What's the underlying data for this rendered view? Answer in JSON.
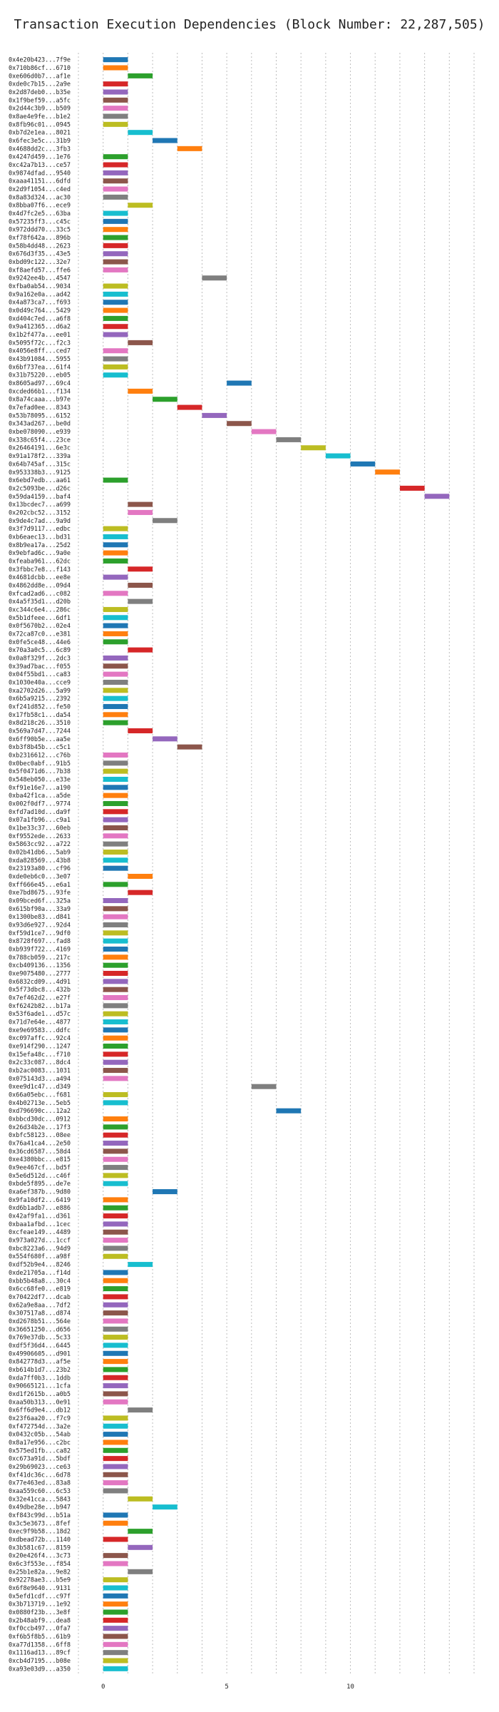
{
  "chart_data": {
    "type": "bar",
    "orientation": "horizontal",
    "title": "Transaction Execution Dependencies (Block Number: 22,287,505)",
    "xlabel": "",
    "ylabel": "",
    "xlim": [
      -1,
      15
    ],
    "xticks": [
      0,
      5,
      10
    ],
    "grid": true,
    "colors": [
      "#1f77b4",
      "#ff7f0e",
      "#2ca02c",
      "#d62728",
      "#9467bd",
      "#8c564b",
      "#e377c2",
      "#7f7f7f",
      "#bcbd22",
      "#17becf"
    ],
    "transactions": [
      {
        "label": "0x4e20b423...7f9e",
        "start": 0,
        "end": 1
      },
      {
        "label": "0x710b86cf...6710",
        "start": 0,
        "end": 1
      },
      {
        "label": "0xe606d0b7...af1e",
        "start": 1,
        "end": 2
      },
      {
        "label": "0xde0c7b15...2a9e",
        "start": 0,
        "end": 1
      },
      {
        "label": "0x2d87deb0...b35e",
        "start": 0,
        "end": 1
      },
      {
        "label": "0x1f9bef59...a5fc",
        "start": 0,
        "end": 1
      },
      {
        "label": "0x2d44c3b9...b509",
        "start": 0,
        "end": 1
      },
      {
        "label": "0x8ae4e9fe...b1e2",
        "start": 0,
        "end": 1
      },
      {
        "label": "0x8fb96c01...0945",
        "start": 0,
        "end": 1
      },
      {
        "label": "0xb7d2e1ea...8021",
        "start": 1,
        "end": 2
      },
      {
        "label": "0x6fec3e5c...31b9",
        "start": 2,
        "end": 3
      },
      {
        "label": "0x4688dd2c...3fb3",
        "start": 3,
        "end": 4
      },
      {
        "label": "0x4247d459...1e76",
        "start": 0,
        "end": 1
      },
      {
        "label": "0xc42a7b13...ce57",
        "start": 0,
        "end": 1
      },
      {
        "label": "0x9874dfad...9540",
        "start": 0,
        "end": 1
      },
      {
        "label": "0xaaa41151...6dfd",
        "start": 0,
        "end": 1
      },
      {
        "label": "0x2d9f1054...c4ed",
        "start": 0,
        "end": 1
      },
      {
        "label": "0x8a83d324...ac30",
        "start": 0,
        "end": 1
      },
      {
        "label": "0x8bba07f6...ece9",
        "start": 1,
        "end": 2
      },
      {
        "label": "0x4d7fc2e5...63ba",
        "start": 0,
        "end": 1
      },
      {
        "label": "0x57235ff3...c45c",
        "start": 0,
        "end": 1
      },
      {
        "label": "0x972ddd70...33c5",
        "start": 0,
        "end": 1
      },
      {
        "label": "0xf78f642a...896b",
        "start": 0,
        "end": 1
      },
      {
        "label": "0x58b4dd48...2623",
        "start": 0,
        "end": 1
      },
      {
        "label": "0x676d3f35...43e5",
        "start": 0,
        "end": 1
      },
      {
        "label": "0xbd09c122...32e7",
        "start": 0,
        "end": 1
      },
      {
        "label": "0xf8aefd57...ffe6",
        "start": 0,
        "end": 1
      },
      {
        "label": "0x9242ee4b...4547",
        "start": 4,
        "end": 5
      },
      {
        "label": "0xfba0ab54...9034",
        "start": 0,
        "end": 1
      },
      {
        "label": "0x9a162e0a...ad42",
        "start": 0,
        "end": 1
      },
      {
        "label": "0x4a873ca7...f693",
        "start": 0,
        "end": 1
      },
      {
        "label": "0x0d49c764...5429",
        "start": 0,
        "end": 1
      },
      {
        "label": "0xd404c7ed...a6f8",
        "start": 0,
        "end": 1
      },
      {
        "label": "0x9a412365...d6a2",
        "start": 0,
        "end": 1
      },
      {
        "label": "0x1b2f477a...ee01",
        "start": 0,
        "end": 1
      },
      {
        "label": "0x5095f72c...f2c3",
        "start": 1,
        "end": 2
      },
      {
        "label": "0x4056e8ff...ced7",
        "start": 0,
        "end": 1
      },
      {
        "label": "0x43b91084...5955",
        "start": 0,
        "end": 1
      },
      {
        "label": "0x6bf737ea...61f4",
        "start": 0,
        "end": 1
      },
      {
        "label": "0x31b75220...eb05",
        "start": 0,
        "end": 1
      },
      {
        "label": "0x8605ad97...69c4",
        "start": 5,
        "end": 6
      },
      {
        "label": "0xcded66b1...f134",
        "start": 1,
        "end": 2
      },
      {
        "label": "0x8a74caaa...b97e",
        "start": 2,
        "end": 3
      },
      {
        "label": "0x7efad0ee...8343",
        "start": 3,
        "end": 4
      },
      {
        "label": "0x53b78095...6152",
        "start": 4,
        "end": 5
      },
      {
        "label": "0x343ad267...be0d",
        "start": 5,
        "end": 6
      },
      {
        "label": "0xbe078090...e939",
        "start": 6,
        "end": 7
      },
      {
        "label": "0x338c65f4...23ce",
        "start": 7,
        "end": 8
      },
      {
        "label": "0x26464191...6e3c",
        "start": 8,
        "end": 9
      },
      {
        "label": "0x91a178f2...339a",
        "start": 9,
        "end": 10
      },
      {
        "label": "0x64b745af...315c",
        "start": 10,
        "end": 11
      },
      {
        "label": "0x953338b3...9125",
        "start": 11,
        "end": 12
      },
      {
        "label": "0x6ebd7edb...aa61",
        "start": 0,
        "end": 1
      },
      {
        "label": "0x2c5093be...d26c",
        "start": 12,
        "end": 13
      },
      {
        "label": "0x59da4159...baf4",
        "start": 13,
        "end": 14
      },
      {
        "label": "0x13bcdec7...a699",
        "start": 1,
        "end": 2
      },
      {
        "label": "0x202cbc52...3152",
        "start": 1,
        "end": 2
      },
      {
        "label": "0x9de4c7ad...9a9d",
        "start": 2,
        "end": 3
      },
      {
        "label": "0x3f7d9117...edbc",
        "start": 0,
        "end": 1
      },
      {
        "label": "0xb6eaec13...bd31",
        "start": 0,
        "end": 1
      },
      {
        "label": "0x8b9ea17a...25d2",
        "start": 0,
        "end": 1
      },
      {
        "label": "0x9ebfad6c...9a0e",
        "start": 0,
        "end": 1
      },
      {
        "label": "0xfeaba961...62dc",
        "start": 0,
        "end": 1
      },
      {
        "label": "0x3fbbc7e8...f143",
        "start": 1,
        "end": 2
      },
      {
        "label": "0x4681dcbb...ee8e",
        "start": 0,
        "end": 1
      },
      {
        "label": "0x4862dd8e...09d4",
        "start": 1,
        "end": 2
      },
      {
        "label": "0xfcad2ad6...c082",
        "start": 0,
        "end": 1
      },
      {
        "label": "0x4a5f35d1...d20b",
        "start": 1,
        "end": 2
      },
      {
        "label": "0xc344c6e4...286c",
        "start": 0,
        "end": 1
      },
      {
        "label": "0x5b1dfeee...6df1",
        "start": 0,
        "end": 1
      },
      {
        "label": "0x0f5670b2...02e4",
        "start": 0,
        "end": 1
      },
      {
        "label": "0x72ca87c0...e381",
        "start": 0,
        "end": 1
      },
      {
        "label": "0x0fe5ce48...44e6",
        "start": 0,
        "end": 1
      },
      {
        "label": "0x70a3a0c5...6c89",
        "start": 1,
        "end": 2
      },
      {
        "label": "0x0a8f329f...2dc3",
        "start": 0,
        "end": 1
      },
      {
        "label": "0x39ad7bac...f055",
        "start": 0,
        "end": 1
      },
      {
        "label": "0x04f55bd1...ca83",
        "start": 0,
        "end": 1
      },
      {
        "label": "0x1030e40a...cce9",
        "start": 0,
        "end": 1
      },
      {
        "label": "0xa2702d26...5a99",
        "start": 0,
        "end": 1
      },
      {
        "label": "0x6b5a9215...2392",
        "start": 0,
        "end": 1
      },
      {
        "label": "0xf241d852...fe50",
        "start": 0,
        "end": 1
      },
      {
        "label": "0x17fb58c1...da54",
        "start": 0,
        "end": 1
      },
      {
        "label": "0x8d218c26...3510",
        "start": 0,
        "end": 1
      },
      {
        "label": "0x569a7d47...7244",
        "start": 1,
        "end": 2
      },
      {
        "label": "0x6ff90b5e...aa5e",
        "start": 2,
        "end": 3
      },
      {
        "label": "0xb3f8b45b...c5c1",
        "start": 3,
        "end": 4
      },
      {
        "label": "0xb2316612...c76b",
        "start": 0,
        "end": 1
      },
      {
        "label": "0x0bec0abf...91b5",
        "start": 0,
        "end": 1
      },
      {
        "label": "0x5f0471d6...7b38",
        "start": 0,
        "end": 1
      },
      {
        "label": "0x548eb050...e33e",
        "start": 0,
        "end": 1
      },
      {
        "label": "0xf91e16e7...a190",
        "start": 0,
        "end": 1
      },
      {
        "label": "0xba42f1ca...a5de",
        "start": 0,
        "end": 1
      },
      {
        "label": "0x002f0df7...9774",
        "start": 0,
        "end": 1
      },
      {
        "label": "0xfd7ad10d...da9f",
        "start": 0,
        "end": 1
      },
      {
        "label": "0x07a1fb96...c9a1",
        "start": 0,
        "end": 1
      },
      {
        "label": "0x1be33c37...60eb",
        "start": 0,
        "end": 1
      },
      {
        "label": "0xf9552ede...2633",
        "start": 0,
        "end": 1
      },
      {
        "label": "0x5863cc92...a722",
        "start": 0,
        "end": 1
      },
      {
        "label": "0x02b41db6...5ab9",
        "start": 0,
        "end": 1
      },
      {
        "label": "0xda828569...43b8",
        "start": 0,
        "end": 1
      },
      {
        "label": "0x23193a80...cf96",
        "start": 0,
        "end": 1
      },
      {
        "label": "0xde0eb6c0...3e07",
        "start": 1,
        "end": 2
      },
      {
        "label": "0xff666e45...e6a1",
        "start": 0,
        "end": 1
      },
      {
        "label": "0xe7bd8675...93fe",
        "start": 1,
        "end": 2
      },
      {
        "label": "0x09bced6f...325a",
        "start": 0,
        "end": 1
      },
      {
        "label": "0x615bf90a...33a9",
        "start": 0,
        "end": 1
      },
      {
        "label": "0x1300be83...d841",
        "start": 0,
        "end": 1
      },
      {
        "label": "0x93d6e927...92d4",
        "start": 0,
        "end": 1
      },
      {
        "label": "0xf59d1ce7...9df0",
        "start": 0,
        "end": 1
      },
      {
        "label": "0x8728f697...fad8",
        "start": 0,
        "end": 1
      },
      {
        "label": "0xb939f722...4169",
        "start": 0,
        "end": 1
      },
      {
        "label": "0x788cb059...217c",
        "start": 0,
        "end": 1
      },
      {
        "label": "0xcb409136...1356",
        "start": 0,
        "end": 1
      },
      {
        "label": "0xe9075480...2777",
        "start": 0,
        "end": 1
      },
      {
        "label": "0x6832cd09...4d91",
        "start": 0,
        "end": 1
      },
      {
        "label": "0x5f73dbc8...432b",
        "start": 0,
        "end": 1
      },
      {
        "label": "0x7ef462d2...e27f",
        "start": 0,
        "end": 1
      },
      {
        "label": "0xf6242b82...b17a",
        "start": 0,
        "end": 1
      },
      {
        "label": "0x53f6ade1...d57c",
        "start": 0,
        "end": 1
      },
      {
        "label": "0x71d7e64e...4877",
        "start": 0,
        "end": 1
      },
      {
        "label": "0xe9e69583...ddfc",
        "start": 0,
        "end": 1
      },
      {
        "label": "0xc097affc...92c4",
        "start": 0,
        "end": 1
      },
      {
        "label": "0xe914f290...1247",
        "start": 0,
        "end": 1
      },
      {
        "label": "0x15efa48c...f710",
        "start": 0,
        "end": 1
      },
      {
        "label": "0x2c33c087...8dc4",
        "start": 0,
        "end": 1
      },
      {
        "label": "0xb2ac0083...1031",
        "start": 0,
        "end": 1
      },
      {
        "label": "0x075143d3...a494",
        "start": 0,
        "end": 1
      },
      {
        "label": "0xee9d1c47...d349",
        "start": 6,
        "end": 7
      },
      {
        "label": "0x66a05ebc...f681",
        "start": 0,
        "end": 1
      },
      {
        "label": "0x4b02713e...5eb5",
        "start": 0,
        "end": 1
      },
      {
        "label": "0xd796690c...12a2",
        "start": 7,
        "end": 8
      },
      {
        "label": "0xbbcd30dc...0912",
        "start": 0,
        "end": 1
      },
      {
        "label": "0x26d34b2e...17f3",
        "start": 0,
        "end": 1
      },
      {
        "label": "0xbfc58123...08ee",
        "start": 0,
        "end": 1
      },
      {
        "label": "0x76a41ca4...2e50",
        "start": 0,
        "end": 1
      },
      {
        "label": "0x36cd6587...58d4",
        "start": 0,
        "end": 1
      },
      {
        "label": "0xe4380bbc...e815",
        "start": 0,
        "end": 1
      },
      {
        "label": "0x9ee467cf...bd5f",
        "start": 0,
        "end": 1
      },
      {
        "label": "0x5e6d512d...c46f",
        "start": 0,
        "end": 1
      },
      {
        "label": "0xbde5f895...de7e",
        "start": 0,
        "end": 1
      },
      {
        "label": "0xa6ef387b...9d80",
        "start": 2,
        "end": 3
      },
      {
        "label": "0x9fa10df2...6419",
        "start": 0,
        "end": 1
      },
      {
        "label": "0xd6b1adb7...e886",
        "start": 0,
        "end": 1
      },
      {
        "label": "0x42af9fa1...d361",
        "start": 0,
        "end": 1
      },
      {
        "label": "0xbaa1afbd...1cec",
        "start": 0,
        "end": 1
      },
      {
        "label": "0xcfeae149...4489",
        "start": 0,
        "end": 1
      },
      {
        "label": "0x973a027d...1ccf",
        "start": 0,
        "end": 1
      },
      {
        "label": "0xbc8223a6...94d9",
        "start": 0,
        "end": 1
      },
      {
        "label": "0x554f680f...a98f",
        "start": 0,
        "end": 1
      },
      {
        "label": "0xdf52b9e4...8246",
        "start": 1,
        "end": 2
      },
      {
        "label": "0xde21705a...f14d",
        "start": 0,
        "end": 1
      },
      {
        "label": "0xbb5b48a8...30c4",
        "start": 0,
        "end": 1
      },
      {
        "label": "0x6cc68fe0...e819",
        "start": 0,
        "end": 1
      },
      {
        "label": "0x70422df7...dcab",
        "start": 0,
        "end": 1
      },
      {
        "label": "0x62a9e8aa...7df2",
        "start": 0,
        "end": 1
      },
      {
        "label": "0x307517a8...d874",
        "start": 0,
        "end": 1
      },
      {
        "label": "0xd2678b51...564e",
        "start": 0,
        "end": 1
      },
      {
        "label": "0x36651250...d656",
        "start": 0,
        "end": 1
      },
      {
        "label": "0x769e37db...5c33",
        "start": 0,
        "end": 1
      },
      {
        "label": "0xdf5f36d4...6445",
        "start": 0,
        "end": 1
      },
      {
        "label": "0x49906605...d901",
        "start": 0,
        "end": 1
      },
      {
        "label": "0x842778d3...af5e",
        "start": 0,
        "end": 1
      },
      {
        "label": "0xb614b1d7...23b2",
        "start": 0,
        "end": 1
      },
      {
        "label": "0xda7ff0b3...1ddb",
        "start": 0,
        "end": 1
      },
      {
        "label": "0x90665121...1cfa",
        "start": 0,
        "end": 1
      },
      {
        "label": "0xd1f2615b...a0b5",
        "start": 0,
        "end": 1
      },
      {
        "label": "0xaa50b313...0e91",
        "start": 0,
        "end": 1
      },
      {
        "label": "0x6ff6d9e4...db12",
        "start": 1,
        "end": 2
      },
      {
        "label": "0x23f6aa20...f7c9",
        "start": 0,
        "end": 1
      },
      {
        "label": "0xf472754d...3a2e",
        "start": 0,
        "end": 1
      },
      {
        "label": "0x0432c05b...54ab",
        "start": 0,
        "end": 1
      },
      {
        "label": "0x8a17e956...c2bc",
        "start": 0,
        "end": 1
      },
      {
        "label": "0x575ed1fb...ca82",
        "start": 0,
        "end": 1
      },
      {
        "label": "0xc673a91d...5bdf",
        "start": 0,
        "end": 1
      },
      {
        "label": "0x29b69023...ce63",
        "start": 0,
        "end": 1
      },
      {
        "label": "0xf41dc36c...6d78",
        "start": 0,
        "end": 1
      },
      {
        "label": "0x77e463ed...83a8",
        "start": 0,
        "end": 1
      },
      {
        "label": "0xaa559c60...6c53",
        "start": 0,
        "end": 1
      },
      {
        "label": "0x32e41cca...5843",
        "start": 1,
        "end": 2
      },
      {
        "label": "0x49dbe28e...b947",
        "start": 2,
        "end": 3
      },
      {
        "label": "0xf843c99d...b51a",
        "start": 0,
        "end": 1
      },
      {
        "label": "0x3c5e3673...8fef",
        "start": 0,
        "end": 1
      },
      {
        "label": "0xec9f9b58...18d2",
        "start": 1,
        "end": 2
      },
      {
        "label": "0xdbead72b...1140",
        "start": 0,
        "end": 1
      },
      {
        "label": "0x3b581c67...8159",
        "start": 1,
        "end": 2
      },
      {
        "label": "0x20e426f4...3c73",
        "start": 0,
        "end": 1
      },
      {
        "label": "0x6c3f553e...f854",
        "start": 0,
        "end": 1
      },
      {
        "label": "0x25b1e82a...9e82",
        "start": 1,
        "end": 2
      },
      {
        "label": "0x92278ae3...b5e9",
        "start": 0,
        "end": 1
      },
      {
        "label": "0x6f8e9640...9131",
        "start": 0,
        "end": 1
      },
      {
        "label": "0x5efd1cdf...c97f",
        "start": 0,
        "end": 1
      },
      {
        "label": "0x3b713719...1e92",
        "start": 0,
        "end": 1
      },
      {
        "label": "0x0880f23b...3e8f",
        "start": 0,
        "end": 1
      },
      {
        "label": "0x2b48abf9...dea8",
        "start": 0,
        "end": 1
      },
      {
        "label": "0xf0ccb497...0fa7",
        "start": 0,
        "end": 1
      },
      {
        "label": "0xf6b5f8b5...61b9",
        "start": 0,
        "end": 1
      },
      {
        "label": "0xa77d1358...6ff8",
        "start": 0,
        "end": 1
      },
      {
        "label": "0x1116ad13...89cf",
        "start": 0,
        "end": 1
      },
      {
        "label": "0xcb4d7195...b08e",
        "start": 0,
        "end": 1
      },
      {
        "label": "0xa93e03d9...a350",
        "start": 0,
        "end": 1
      }
    ]
  }
}
